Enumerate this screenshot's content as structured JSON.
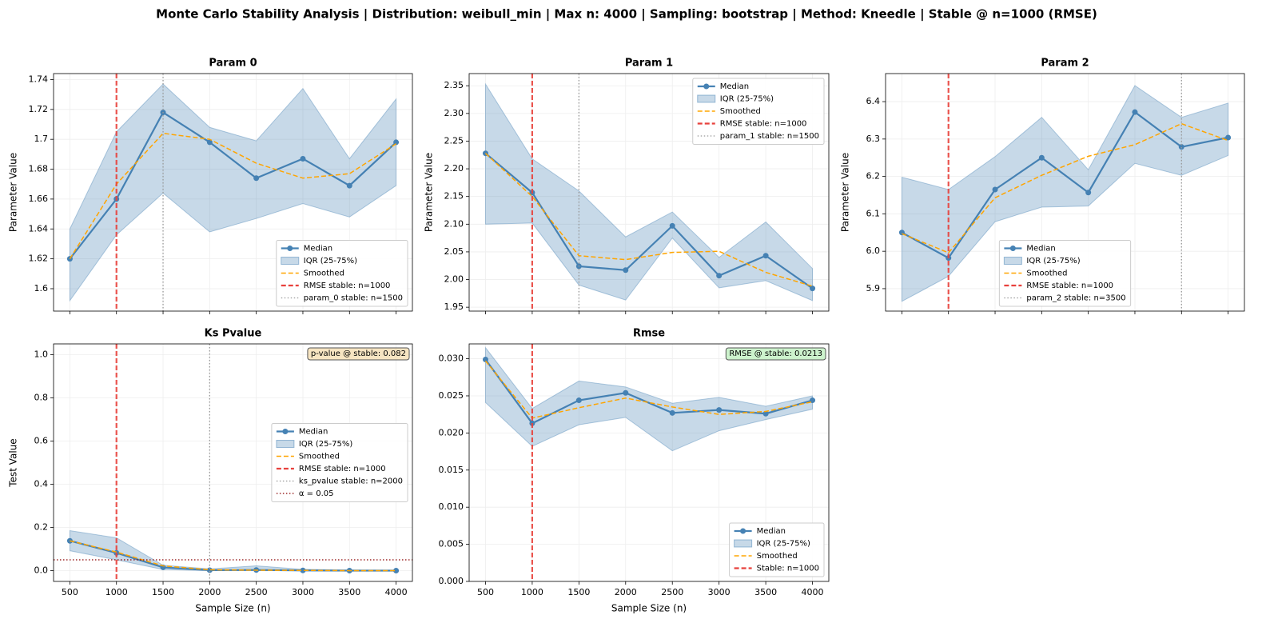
{
  "title": "Monte Carlo Stability Analysis | Distribution: weibull_min | Max n: 4000 | Sampling: bootstrap | Method: Kneedle | Stable @ n=1000 (RMSE)",
  "chart_data": [
    {
      "type": "line",
      "title": "Param 0",
      "y_label": "Parameter Value",
      "x": [
        500,
        1000,
        1500,
        2000,
        2500,
        3000,
        3500,
        4000
      ],
      "xlim": [
        325,
        4175
      ],
      "xticks": [
        500,
        1000,
        1500,
        2000,
        2500,
        3000,
        3500,
        4000
      ],
      "xtick_labels": false,
      "ylim": [
        1.585,
        1.744
      ],
      "yticks": [
        1.6,
        1.62,
        1.64,
        1.66,
        1.68,
        1.7,
        1.72,
        1.74
      ],
      "grid": true,
      "legend": "lower right",
      "series": [
        {
          "name": "Median",
          "color": "#4682b4",
          "marker": true,
          "values": [
            1.62,
            1.66,
            1.718,
            1.698,
            1.674,
            1.687,
            1.669,
            1.698
          ]
        },
        {
          "name": "IQR (25-75%)",
          "color": "#4682b4",
          "lower": [
            1.592,
            1.636,
            1.664,
            1.638,
            1.647,
            1.657,
            1.648,
            1.669
          ],
          "upper": [
            1.64,
            1.705,
            1.737,
            1.708,
            1.699,
            1.734,
            1.687,
            1.727
          ]
        },
        {
          "name": "Smoothed",
          "color": "#ffa500",
          "style": "dashed",
          "values": [
            1.62,
            1.67,
            1.704,
            1.7,
            1.684,
            1.674,
            1.677,
            1.697
          ]
        }
      ],
      "vlines": [
        {
          "name": "RMSE stable: n=1000",
          "x": 1000,
          "color": "#e8413c",
          "style": "dashed"
        },
        {
          "name": "param_0 stable: n=1500",
          "x": 1500,
          "color": "#999999",
          "style": "dotted"
        }
      ]
    },
    {
      "type": "line",
      "title": "Param 1",
      "y_label": "Parameter Value",
      "x": [
        500,
        1000,
        1500,
        2000,
        2500,
        3000,
        3500,
        4000
      ],
      "xlim": [
        325,
        4175
      ],
      "xticks": [
        500,
        1000,
        1500,
        2000,
        2500,
        3000,
        3500,
        4000
      ],
      "xtick_labels": false,
      "ylim": [
        1.943,
        2.372
      ],
      "yticks": [
        1.95,
        {
          "value": 2,
          "label": "2.00"
        },
        2.05,
        {
          "value": 2.1,
          "label": "2.10"
        },
        2.15,
        {
          "value": 2.2,
          "label": "2.20"
        },
        2.25,
        {
          "value": 2.3,
          "label": "2.30"
        },
        2.35
      ],
      "grid": true,
      "legend": "upper right",
      "series": [
        {
          "name": "Median",
          "color": "#4682b4",
          "marker": true,
          "values": [
            2.228,
            2.157,
            2.024,
            2.017,
            2.097,
            2.007,
            2.043,
            1.984
          ]
        },
        {
          "name": "IQR (25-75%)",
          "color": "#4682b4",
          "lower": [
            2.1,
            2.102,
            1.99,
            1.963,
            2.075,
            1.985,
            1.998,
            1.962
          ],
          "upper": [
            2.353,
            2.218,
            2.16,
            2.077,
            2.122,
            2.04,
            2.104,
            2.02
          ]
        },
        {
          "name": "Smoothed",
          "color": "#ffa500",
          "style": "dashed",
          "values": [
            2.228,
            2.15,
            2.043,
            2.036,
            2.049,
            2.051,
            2.013,
            1.988
          ]
        }
      ],
      "vlines": [
        {
          "name": "RMSE stable: n=1000",
          "x": 1000,
          "color": "#e8413c",
          "style": "dashed"
        },
        {
          "name": "param_1 stable: n=1500",
          "x": 1500,
          "color": "#999999",
          "style": "dotted"
        }
      ]
    },
    {
      "type": "line",
      "title": "Param 2",
      "y_label": "Parameter Value",
      "x": [
        500,
        1000,
        1500,
        2000,
        2500,
        3000,
        3500,
        4000
      ],
      "xlim": [
        325,
        4175
      ],
      "xticks": [
        500,
        1000,
        1500,
        2000,
        2500,
        3000,
        3500,
        4000
      ],
      "xtick_labels": false,
      "ylim": [
        5.84,
        6.475
      ],
      "yticks": [
        5.9,
        {
          "value": 6,
          "label": "6.0"
        },
        6.1,
        6.2,
        6.3,
        6.4
      ],
      "grid": true,
      "legend": "lower center",
      "series": [
        {
          "name": "Median",
          "color": "#4682b4",
          "marker": true,
          "values": [
            6.05,
            5.982,
            6.165,
            6.25,
            6.157,
            6.372,
            6.279,
            6.304
          ]
        },
        {
          "name": "IQR (25-75%)",
          "color": "#4682b4",
          "lower": [
            5.866,
            5.933,
            6.079,
            6.118,
            6.121,
            6.235,
            6.203,
            6.256
          ],
          "upper": [
            6.198,
            6.165,
            6.253,
            6.358,
            6.218,
            6.443,
            6.358,
            6.396
          ]
        },
        {
          "name": "Smoothed",
          "color": "#ffa500",
          "style": "dashed",
          "values": [
            6.047,
            5.996,
            6.143,
            6.203,
            6.254,
            6.285,
            6.341,
            6.296
          ]
        }
      ],
      "vlines": [
        {
          "name": "RMSE stable: n=1000",
          "x": 1000,
          "color": "#e8413c",
          "style": "dashed"
        },
        {
          "name": "param_2 stable: n=3500",
          "x": 3500,
          "color": "#999999",
          "style": "dotted"
        }
      ]
    },
    {
      "type": "line",
      "title": "Ks Pvalue",
      "y_label": "Test Value",
      "x_label": "Sample Size (n)",
      "x": [
        500,
        1000,
        1500,
        2000,
        2500,
        3000,
        3500,
        4000
      ],
      "xlim": [
        325,
        4175
      ],
      "xticks": [
        500,
        1000,
        1500,
        2000,
        2500,
        3000,
        3500,
        4000
      ],
      "xtick_labels": true,
      "ylim": [
        -0.05,
        1.05
      ],
      "yticks": [
        {
          "value": 0,
          "label": "0.0"
        },
        0.2,
        0.4,
        0.6,
        0.8,
        {
          "value": 1,
          "label": "1.0"
        }
      ],
      "grid": true,
      "legend": "center right",
      "series": [
        {
          "name": "Median",
          "color": "#4682b4",
          "marker": true,
          "values": [
            0.138,
            0.082,
            0.015,
            0.002,
            0.003,
            0.001,
            0.0,
            0.0
          ]
        },
        {
          "name": "IQR (25-75%)",
          "color": "#4682b4",
          "lower": [
            0.092,
            0.05,
            0.005,
            0.0,
            0.0,
            0.0,
            0.0,
            0.0
          ],
          "upper": [
            0.185,
            0.152,
            0.025,
            0.008,
            0.022,
            0.006,
            0.003,
            0.002
          ]
        },
        {
          "name": "Smoothed",
          "color": "#ffa500",
          "style": "dashed",
          "values": [
            0.138,
            0.086,
            0.022,
            0.004,
            0.002,
            0.001,
            0.0,
            0.0
          ]
        }
      ],
      "vlines": [
        {
          "name": "RMSE stable: n=1000",
          "x": 1000,
          "color": "#e8413c",
          "style": "dashed"
        },
        {
          "name": "ks_pvalue stable: n=2000",
          "x": 2000,
          "color": "#999999",
          "style": "dotted"
        }
      ],
      "hlines": [
        {
          "name": "α = 0.05",
          "y": 0.05,
          "color": "#8b0000",
          "style": "dotted"
        }
      ],
      "annotation": {
        "text": "p-value @ stable: 0.082",
        "color": "#f5deb3"
      }
    },
    {
      "type": "line",
      "title": "Rmse",
      "x_label": "Sample Size (n)",
      "x": [
        500,
        1000,
        1500,
        2000,
        2500,
        3000,
        3500,
        4000
      ],
      "xlim": [
        325,
        4175
      ],
      "xticks": [
        500,
        1000,
        1500,
        2000,
        2500,
        3000,
        3500,
        4000
      ],
      "xtick_labels": true,
      "ylim": [
        0,
        0.032
      ],
      "yticks": [
        {
          "value": 0,
          "label": "0.000"
        },
        {
          "value": 0.005,
          "label": "0.005"
        },
        {
          "value": 0.01,
          "label": "0.010"
        },
        {
          "value": 0.015,
          "label": "0.015"
        },
        {
          "value": 0.02,
          "label": "0.020"
        },
        {
          "value": 0.025,
          "label": "0.025"
        },
        {
          "value": 0.03,
          "label": "0.030"
        }
      ],
      "grid": true,
      "legend": "lower right",
      "series": [
        {
          "name": "Median",
          "color": "#4682b4",
          "marker": true,
          "values": [
            0.0299,
            0.0213,
            0.0244,
            0.0254,
            0.0227,
            0.0231,
            0.0226,
            0.0244
          ]
        },
        {
          "name": "IQR (25-75%)",
          "color": "#4682b4",
          "lower": [
            0.0241,
            0.0182,
            0.0211,
            0.0221,
            0.0176,
            0.0203,
            0.0218,
            0.0232
          ],
          "upper": [
            0.0315,
            0.0233,
            0.027,
            0.0262,
            0.024,
            0.0248,
            0.0236,
            0.025
          ]
        },
        {
          "name": "Smoothed",
          "color": "#ffa500",
          "style": "dashed",
          "values": [
            0.0297,
            0.022,
            0.0234,
            0.0247,
            0.0235,
            0.0225,
            0.0229,
            0.0242
          ]
        }
      ],
      "vlines": [
        {
          "name": "Stable: n=1000",
          "x": 1000,
          "color": "#e8413c",
          "style": "dashed"
        }
      ],
      "annotation": {
        "text": "RMSE @ stable: 0.0213",
        "color": "#c1f0c1"
      }
    }
  ]
}
